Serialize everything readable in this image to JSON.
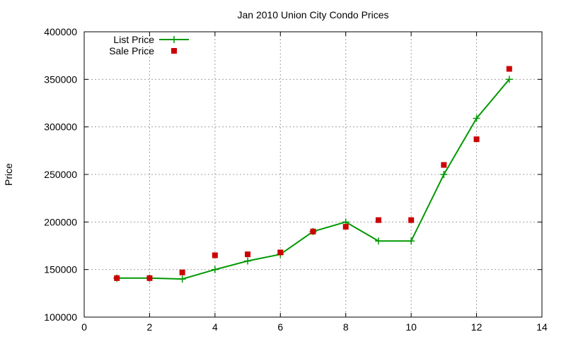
{
  "chart_data": {
    "type": "line",
    "title": "Jan 2010 Union City Condo Prices",
    "xlabel": "",
    "ylabel": "Price",
    "xlim": [
      0,
      14
    ],
    "ylim": [
      100000,
      400000
    ],
    "x_ticks": [
      0,
      2,
      4,
      6,
      8,
      10,
      12,
      14
    ],
    "y_ticks": [
      100000,
      150000,
      200000,
      250000,
      300000,
      350000,
      400000
    ],
    "x_tick_labels": [
      "0",
      "2",
      "4",
      "6",
      "8",
      "10",
      "12",
      "14"
    ],
    "y_tick_labels": [
      "100000",
      "150000",
      "200000",
      "250000",
      "300000",
      "350000",
      "400000"
    ],
    "grid": true,
    "legend_position": "top-left",
    "series": [
      {
        "name": "List Price",
        "style": "line-with-plus-markers",
        "color": "#009900",
        "x": [
          1,
          2,
          3,
          4,
          5,
          6,
          7,
          8,
          9,
          10,
          11,
          12,
          13
        ],
        "y": [
          141000,
          141000,
          140000,
          150000,
          159000,
          166000,
          190000,
          200000,
          180000,
          180000,
          250000,
          309000,
          350000
        ]
      },
      {
        "name": "Sale Price",
        "style": "square-markers",
        "color": "#cc0000",
        "x": [
          1,
          2,
          3,
          4,
          5,
          6,
          7,
          8,
          9,
          10,
          11,
          12,
          13
        ],
        "y": [
          141000,
          141000,
          147000,
          165000,
          166000,
          168000,
          190000,
          195000,
          202000,
          202000,
          260000,
          287000,
          361000
        ]
      }
    ]
  }
}
